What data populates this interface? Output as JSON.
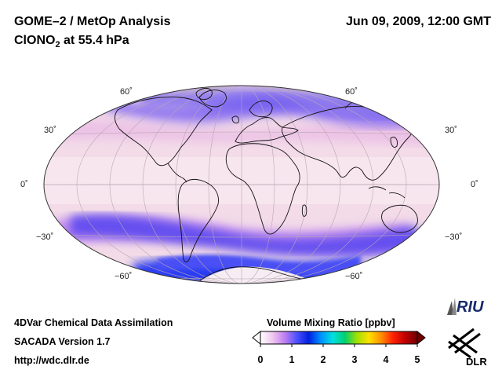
{
  "header": {
    "title_line1": "GOME–2 / MetOp Analysis",
    "title_species": "ClONO",
    "title_subscript": "2",
    "title_suffix": " at 55.4 hPa",
    "datetime": "Jun 09, 2009, 12:00 GMT"
  },
  "latitude_labels": {
    "n60": "60˚",
    "n30": "30˚",
    "eq": "0˚",
    "s30": "−30˚",
    "s60": "−60˚"
  },
  "footer": {
    "line1": "4DVar Chemical Data Assimilation",
    "line2": "SACADA Version 1.7",
    "line3": "http://wdc.dlr.de"
  },
  "colorbar": {
    "title": "Volume Mixing Ratio [ppbv]",
    "ticks": [
      "0",
      "1",
      "2",
      "3",
      "4",
      "5"
    ],
    "min": 0,
    "max": 5,
    "colors": [
      "#ffffff",
      "#f0c8f0",
      "#c080f0",
      "#5050ff",
      "#0020e0",
      "#0090ff",
      "#00e0e0",
      "#00d070",
      "#a0e000",
      "#ffe000",
      "#ff9000",
      "#ff2000",
      "#c00000",
      "#700000"
    ]
  },
  "logos": {
    "riu": "RIU",
    "dlr": "DLR"
  },
  "colors": {
    "background_map": "#f5dcea",
    "low_band": "#6a5cf0",
    "high_band": "#2a3cf0"
  }
}
